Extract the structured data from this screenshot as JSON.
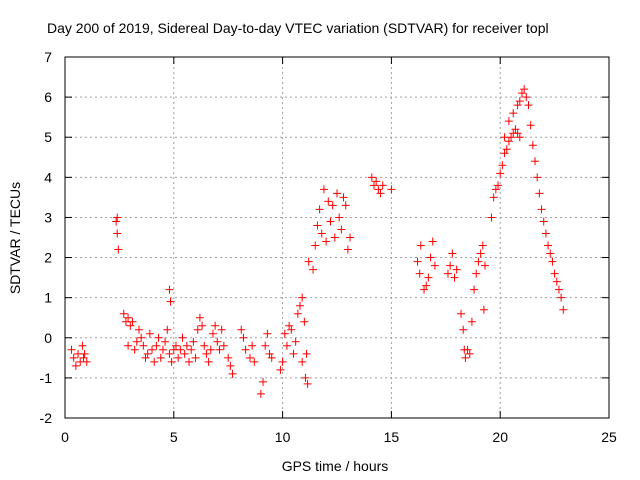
{
  "chart_data": {
    "type": "scatter",
    "title": "Day 200 of 2019, Sidereal Day-to-day VTEC variation (SDTVAR) for receiver topl",
    "xlabel": "GPS time / hours",
    "ylabel": "SDTVAR / TECUs",
    "xlim": [
      0,
      25
    ],
    "ylim": [
      -2,
      7
    ],
    "xticks": [
      0,
      5,
      10,
      15,
      20,
      25
    ],
    "yticks": [
      -2,
      -1,
      0,
      1,
      2,
      3,
      4,
      5,
      6,
      7
    ],
    "grid": true,
    "marker": "+",
    "colors": {
      "series": "#ff0000",
      "grid": "#a0a0a0",
      "axes": "#000000"
    },
    "series": [
      {
        "name": "SDTVAR",
        "points": [
          [
            0.3,
            -0.3
          ],
          [
            0.4,
            -0.5
          ],
          [
            0.5,
            -0.7
          ],
          [
            0.6,
            -0.4
          ],
          [
            0.7,
            -0.6
          ],
          [
            0.8,
            -0.2
          ],
          [
            0.85,
            -0.5
          ],
          [
            0.9,
            -0.4
          ],
          [
            1.0,
            -0.6
          ],
          [
            2.35,
            2.9
          ],
          [
            2.4,
            2.6
          ],
          [
            2.45,
            2.2
          ],
          [
            2.4,
            3.0
          ],
          [
            2.7,
            0.6
          ],
          [
            2.8,
            0.4
          ],
          [
            2.9,
            0.5
          ],
          [
            3.0,
            0.3
          ],
          [
            3.1,
            0.4
          ],
          [
            2.9,
            -0.2
          ],
          [
            3.2,
            -0.3
          ],
          [
            3.3,
            -0.1
          ],
          [
            3.4,
            0.2
          ],
          [
            3.5,
            0.0
          ],
          [
            3.6,
            -0.2
          ],
          [
            3.7,
            -0.5
          ],
          [
            3.8,
            -0.4
          ],
          [
            3.9,
            0.1
          ],
          [
            4.0,
            -0.3
          ],
          [
            4.1,
            -0.6
          ],
          [
            4.2,
            -0.2
          ],
          [
            4.3,
            0.0
          ],
          [
            4.4,
            -0.5
          ],
          [
            4.5,
            -0.3
          ],
          [
            4.6,
            -0.1
          ],
          [
            4.7,
            0.2
          ],
          [
            4.8,
            -0.4
          ],
          [
            4.9,
            -0.6
          ],
          [
            5.0,
            -0.3
          ],
          [
            4.8,
            1.2
          ],
          [
            4.85,
            0.9
          ],
          [
            5.1,
            -0.2
          ],
          [
            5.2,
            -0.5
          ],
          [
            5.3,
            -0.3
          ],
          [
            5.4,
            0.0
          ],
          [
            5.5,
            -0.4
          ],
          [
            5.6,
            -0.2
          ],
          [
            5.7,
            -0.6
          ],
          [
            5.8,
            -0.3
          ],
          [
            5.9,
            -0.1
          ],
          [
            6.0,
            -0.5
          ],
          [
            6.1,
            0.2
          ],
          [
            6.2,
            0.5
          ],
          [
            6.3,
            0.3
          ],
          [
            6.4,
            -0.2
          ],
          [
            6.5,
            -0.4
          ],
          [
            6.6,
            -0.6
          ],
          [
            6.7,
            -0.3
          ],
          [
            6.8,
            0.1
          ],
          [
            6.9,
            0.3
          ],
          [
            7.0,
            -0.1
          ],
          [
            7.1,
            -0.3
          ],
          [
            7.2,
            0.2
          ],
          [
            7.3,
            -0.2
          ],
          [
            7.5,
            -0.5
          ],
          [
            7.6,
            -0.7
          ],
          [
            7.7,
            -0.9
          ],
          [
            8.1,
            0.2
          ],
          [
            8.2,
            0.0
          ],
          [
            8.3,
            -0.3
          ],
          [
            8.5,
            -0.5
          ],
          [
            8.6,
            -0.2
          ],
          [
            8.7,
            -0.6
          ],
          [
            9.0,
            -1.4
          ],
          [
            9.1,
            -1.1
          ],
          [
            9.2,
            -0.2
          ],
          [
            9.3,
            0.1
          ],
          [
            9.4,
            -0.4
          ],
          [
            9.5,
            -0.5
          ],
          [
            9.9,
            -0.8
          ],
          [
            10.0,
            -0.6
          ],
          [
            10.1,
            0.1
          ],
          [
            10.2,
            -0.2
          ],
          [
            10.3,
            0.3
          ],
          [
            10.4,
            0.2
          ],
          [
            10.5,
            -0.4
          ],
          [
            10.6,
            -0.1
          ],
          [
            10.7,
            0.6
          ],
          [
            10.8,
            0.8
          ],
          [
            10.9,
            1.0
          ],
          [
            11.0,
            0.4
          ],
          [
            11.1,
            -0.4
          ],
          [
            10.9,
            -0.6
          ],
          [
            11.05,
            -1.0
          ],
          [
            11.15,
            -1.15
          ],
          [
            11.2,
            1.9
          ],
          [
            11.4,
            1.7
          ],
          [
            11.5,
            2.3
          ],
          [
            11.6,
            2.8
          ],
          [
            11.7,
            3.2
          ],
          [
            11.8,
            2.6
          ],
          [
            11.9,
            3.7
          ],
          [
            12.0,
            2.4
          ],
          [
            12.1,
            3.4
          ],
          [
            12.2,
            2.9
          ],
          [
            12.3,
            3.3
          ],
          [
            12.4,
            2.5
          ],
          [
            12.5,
            3.6
          ],
          [
            12.6,
            3.0
          ],
          [
            12.7,
            2.7
          ],
          [
            12.8,
            3.5
          ],
          [
            12.9,
            3.3
          ],
          [
            13.0,
            2.2
          ],
          [
            13.1,
            2.5
          ],
          [
            14.1,
            4.0
          ],
          [
            14.2,
            3.8
          ],
          [
            14.3,
            3.9
          ],
          [
            14.4,
            3.7
          ],
          [
            14.5,
            3.6
          ],
          [
            14.6,
            3.8
          ],
          [
            15.0,
            3.7
          ],
          [
            16.2,
            1.9
          ],
          [
            16.3,
            1.6
          ],
          [
            16.35,
            2.3
          ],
          [
            16.5,
            1.2
          ],
          [
            16.6,
            1.3
          ],
          [
            16.7,
            1.5
          ],
          [
            16.8,
            2.0
          ],
          [
            16.9,
            2.4
          ],
          [
            17.0,
            1.8
          ],
          [
            17.6,
            1.6
          ],
          [
            17.7,
            1.8
          ],
          [
            17.8,
            2.1
          ],
          [
            17.9,
            1.5
          ],
          [
            18.0,
            1.7
          ],
          [
            18.2,
            0.6
          ],
          [
            18.3,
            0.2
          ],
          [
            18.35,
            -0.3
          ],
          [
            18.4,
            -0.5
          ],
          [
            18.5,
            -0.3
          ],
          [
            18.6,
            -0.4
          ],
          [
            18.7,
            0.4
          ],
          [
            18.8,
            1.2
          ],
          [
            18.9,
            1.6
          ],
          [
            19.0,
            1.9
          ],
          [
            19.1,
            2.1
          ],
          [
            19.2,
            2.3
          ],
          [
            19.3,
            1.8
          ],
          [
            19.25,
            0.7
          ],
          [
            19.6,
            3.0
          ],
          [
            19.7,
            3.5
          ],
          [
            19.8,
            3.7
          ],
          [
            19.9,
            3.8
          ],
          [
            20.0,
            4.1
          ],
          [
            20.1,
            4.3
          ],
          [
            20.2,
            4.6
          ],
          [
            20.3,
            4.7
          ],
          [
            20.4,
            4.9
          ],
          [
            20.5,
            5.0
          ],
          [
            20.6,
            5.1
          ],
          [
            20.7,
            5.2
          ],
          [
            20.8,
            5.1
          ],
          [
            20.9,
            5.0
          ],
          [
            20.2,
            5.0
          ],
          [
            20.4,
            5.4
          ],
          [
            20.6,
            5.6
          ],
          [
            20.8,
            5.8
          ],
          [
            20.9,
            5.9
          ],
          [
            21.0,
            6.1
          ],
          [
            21.1,
            6.2
          ],
          [
            21.2,
            6.0
          ],
          [
            21.3,
            5.8
          ],
          [
            21.4,
            5.3
          ],
          [
            21.5,
            4.8
          ],
          [
            21.6,
            4.4
          ],
          [
            21.7,
            4.0
          ],
          [
            21.8,
            3.6
          ],
          [
            21.9,
            3.2
          ],
          [
            22.0,
            2.9
          ],
          [
            22.1,
            2.6
          ],
          [
            22.2,
            2.3
          ],
          [
            22.3,
            2.1
          ],
          [
            22.4,
            1.9
          ],
          [
            22.5,
            1.6
          ],
          [
            22.6,
            1.4
          ],
          [
            22.7,
            1.2
          ],
          [
            22.8,
            1.0
          ],
          [
            22.9,
            0.7
          ]
        ]
      }
    ]
  }
}
